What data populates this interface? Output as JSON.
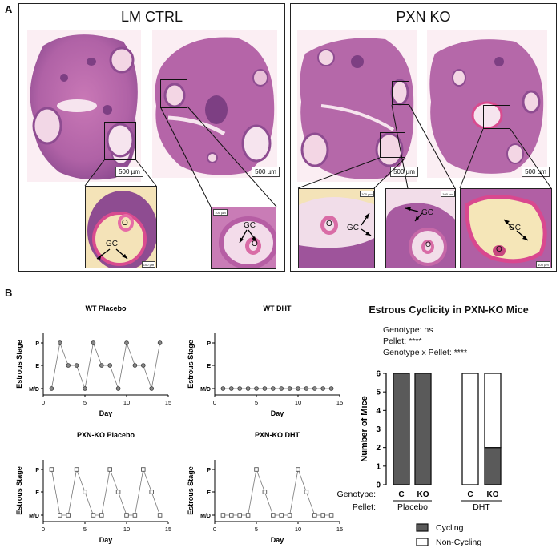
{
  "panel_a": {
    "letter": "A",
    "groups": [
      {
        "title": "LM CTRL"
      },
      {
        "title": "PXN KO"
      }
    ],
    "scale_main": "500 µm",
    "scale_inset": "100 µm",
    "label_o": "O",
    "label_gc": "GC"
  },
  "panel_b": {
    "letter": "B",
    "y_axis_label": "Estrous Stage",
    "x_axis_label": "Day",
    "stage_ticks": [
      "M/D",
      "E",
      "P"
    ],
    "day_ticks": [
      "0",
      "5",
      "10",
      "15"
    ]
  },
  "chart_data": [
    {
      "type": "line",
      "title": "WT Placebo",
      "xlabel": "Day",
      "ylabel": "Estrous Stage",
      "xlim": [
        0,
        15
      ],
      "y_categories": [
        "M/D",
        "E",
        "P"
      ],
      "x": [
        1,
        2,
        3,
        4,
        5,
        6,
        7,
        8,
        9,
        10,
        11,
        12,
        13,
        14
      ],
      "y": [
        "M/D",
        "P",
        "E",
        "E",
        "M/D",
        "P",
        "E",
        "E",
        "M/D",
        "P",
        "E",
        "E",
        "M/D",
        "P"
      ]
    },
    {
      "type": "line",
      "title": "WT DHT",
      "xlabel": "Day",
      "ylabel": "Estrous Stage",
      "xlim": [
        0,
        15
      ],
      "y_categories": [
        "M/D",
        "E",
        "P"
      ],
      "x": [
        1,
        2,
        3,
        4,
        5,
        6,
        7,
        8,
        9,
        10,
        11,
        12,
        13,
        14
      ],
      "y": [
        "M/D",
        "M/D",
        "M/D",
        "M/D",
        "M/D",
        "M/D",
        "M/D",
        "M/D",
        "M/D",
        "M/D",
        "M/D",
        "M/D",
        "M/D",
        "M/D"
      ]
    },
    {
      "type": "line",
      "title": "PXN-KO Placebo",
      "xlabel": "Day",
      "ylabel": "Estrous Stage",
      "xlim": [
        0,
        15
      ],
      "y_categories": [
        "M/D",
        "E",
        "P"
      ],
      "x": [
        1,
        2,
        3,
        4,
        5,
        6,
        7,
        8,
        9,
        10,
        11,
        12,
        13,
        14
      ],
      "y": [
        "P",
        "M/D",
        "M/D",
        "P",
        "E",
        "M/D",
        "M/D",
        "P",
        "E",
        "M/D",
        "M/D",
        "P",
        "E",
        "M/D"
      ]
    },
    {
      "type": "line",
      "title": "PXN-KO DHT",
      "xlabel": "Day",
      "ylabel": "Estrous Stage",
      "xlim": [
        0,
        15
      ],
      "y_categories": [
        "M/D",
        "E",
        "P"
      ],
      "x": [
        1,
        2,
        3,
        4,
        5,
        6,
        7,
        8,
        9,
        10,
        11,
        12,
        13,
        14
      ],
      "y": [
        "M/D",
        "M/D",
        "M/D",
        "M/D",
        "P",
        "E",
        "M/D",
        "M/D",
        "M/D",
        "P",
        "E",
        "M/D",
        "M/D",
        "M/D"
      ]
    },
    {
      "type": "bar",
      "stacked": true,
      "title": "Estrous Cyclicity in PXN-KO Mice",
      "ylabel": "Number of Mice",
      "ylim": [
        0,
        6
      ],
      "yticks": [
        "0",
        "1",
        "2",
        "3",
        "4",
        "5",
        "6"
      ],
      "categories": [
        "C",
        "KO",
        "C",
        "KO"
      ],
      "pellet_groups": [
        "Placebo",
        "DHT"
      ],
      "row_labels": {
        "genotype": "Genotype:",
        "pellet": "Pellet:"
      },
      "series": [
        {
          "name": "Cycling",
          "values": [
            6,
            6,
            0,
            2
          ],
          "color": "#5a5a5a"
        },
        {
          "name": "Non-Cycling",
          "values": [
            0,
            0,
            6,
            4
          ],
          "color": "#ffffff"
        }
      ],
      "annotations": [
        "Genotype: ns",
        "Pellet: ****",
        "Genotype x Pellet: ****"
      ],
      "legend_position": "bottom"
    }
  ]
}
